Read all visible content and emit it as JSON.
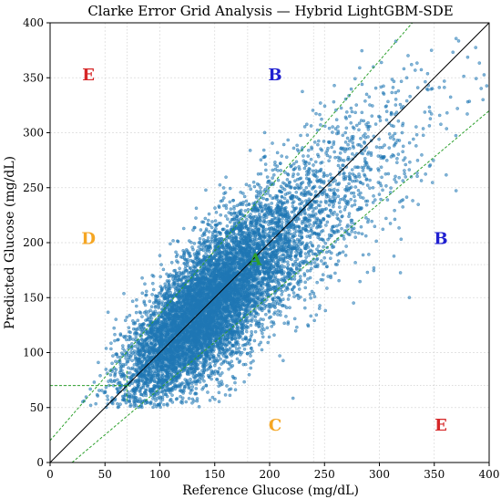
{
  "chart_data": {
    "type": "scatter",
    "title": "Clarke Error Grid Analysis — Hybrid LightGBM-SDE",
    "xlabel": "Reference Glucose (mg/dL)",
    "ylabel": "Predicted Glucose (mg/dL)",
    "xlim": [
      0,
      400
    ],
    "ylim": [
      0,
      400
    ],
    "xticks": [
      "0",
      "50",
      "100",
      "150",
      "200",
      "250",
      "300",
      "350",
      "400"
    ],
    "yticks": [
      "0",
      "50",
      "100",
      "150",
      "200",
      "250",
      "300",
      "350",
      "400"
    ],
    "grid": true,
    "point_color": "#1f77b4",
    "reference_line": {
      "points": [
        [
          0,
          0
        ],
        [
          400,
          400
        ]
      ],
      "color": "#000000",
      "style": "solid"
    },
    "zone_boundaries": [
      {
        "points": [
          [
            0,
            20
          ],
          [
            330,
            400
          ]
        ],
        "color": "#2ca02c",
        "style": "dashed"
      },
      {
        "points": [
          [
            20,
            0
          ],
          [
            400,
            320
          ]
        ],
        "color": "#2ca02c",
        "style": "dashed"
      },
      {
        "points": [
          [
            0,
            70
          ],
          [
            70,
            70
          ]
        ],
        "color": "#2ca02c",
        "style": "dashed"
      },
      {
        "points": [
          [
            70,
            56
          ],
          [
            70,
            84
          ]
        ],
        "color": "#2ca02c",
        "style": "dashed"
      },
      {
        "points": [
          [
            58,
            70
          ],
          [
            72,
            70
          ]
        ],
        "color": "#2ca02c",
        "style": "dashed"
      }
    ],
    "guide_lines": [
      {
        "axis": "x",
        "value": 70
      },
      {
        "axis": "x",
        "value": 180
      },
      {
        "axis": "x",
        "value": 240
      },
      {
        "axis": "y",
        "value": 70
      },
      {
        "axis": "y",
        "value": 180
      }
    ],
    "zone_labels": [
      {
        "text": "E",
        "x": 35,
        "y": 352,
        "color": "#d62728"
      },
      {
        "text": "B",
        "x": 205,
        "y": 352,
        "color": "#1f1fd0"
      },
      {
        "text": "D",
        "x": 35,
        "y": 203,
        "color": "#f5a623"
      },
      {
        "text": "A",
        "x": 187,
        "y": 184,
        "color": "#2ca02c"
      },
      {
        "text": "B",
        "x": 356,
        "y": 203,
        "color": "#1f1fd0"
      },
      {
        "text": "C",
        "x": 205,
        "y": 33,
        "color": "#f5a623"
      },
      {
        "text": "E",
        "x": 356,
        "y": 33,
        "color": "#d62728"
      }
    ],
    "distribution": {
      "n_points": 9000,
      "reference_center": 135,
      "reference_spread": 35,
      "reference_skew_tail": 80,
      "prediction_slope": 0.88,
      "prediction_intercept": 15,
      "prediction_noise": 22
    }
  }
}
